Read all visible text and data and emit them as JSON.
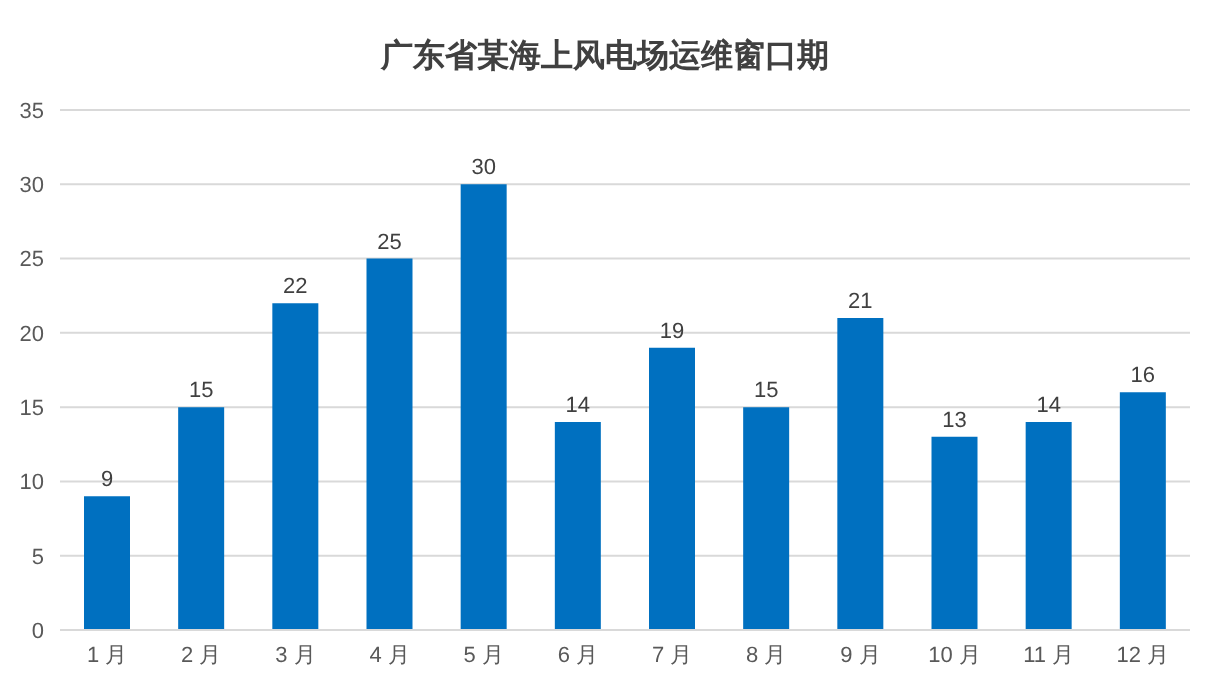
{
  "chart_data": {
    "type": "bar",
    "title": "广东省某海上风电场运维窗口期",
    "categories": [
      "1 月",
      "2 月",
      "3 月",
      "4 月",
      "5 月",
      "6 月",
      "7 月",
      "8 月",
      "9 月",
      "10 月",
      "11 月",
      "12 月"
    ],
    "values": [
      9,
      15,
      22,
      25,
      30,
      14,
      19,
      15,
      21,
      13,
      14,
      16
    ],
    "color": "#0070c0",
    "ylim": [
      0,
      35
    ],
    "yticks": [
      0,
      5,
      10,
      15,
      20,
      25,
      30,
      35
    ],
    "grid": "y",
    "data_labels": true
  }
}
